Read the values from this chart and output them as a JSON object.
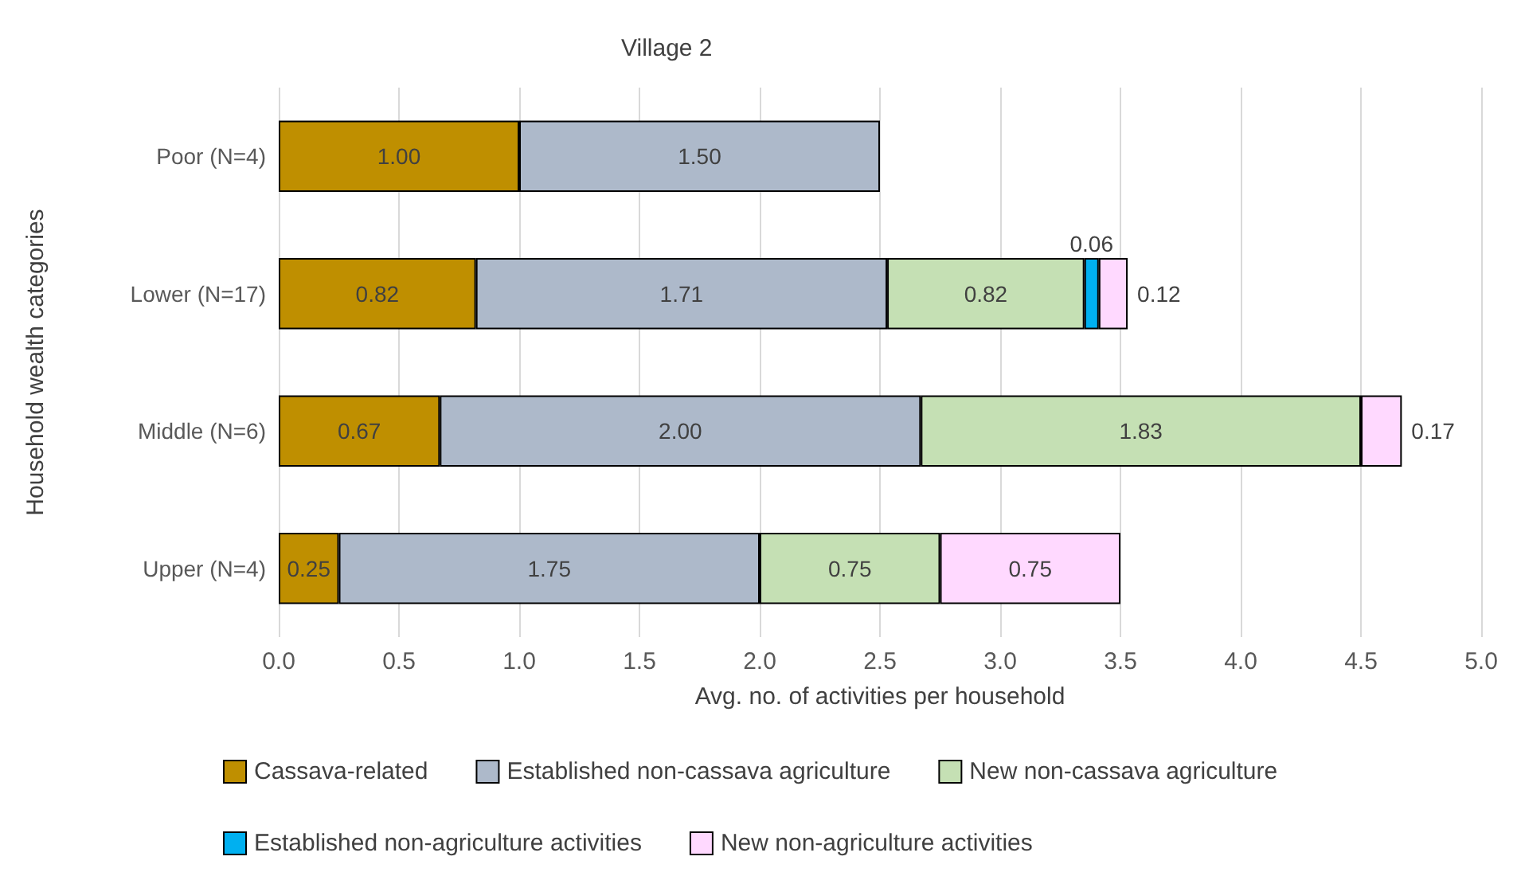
{
  "chart_data": {
    "type": "bar",
    "orientation": "horizontal",
    "stacked": true,
    "title": "Village 2",
    "xlabel": "Avg. no. of activities per household",
    "ylabel": "Household wealth categories",
    "categories": [
      "Poor (N=4)",
      "Lower (N=17)",
      "Middle (N=6)",
      "Upper (N=4)"
    ],
    "series": [
      {
        "name": "Cassava-related",
        "color": "#bf8f00",
        "values": [
          1.0,
          0.82,
          0.67,
          0.25
        ],
        "value_labels": [
          "1.00",
          "0.82",
          "0.67",
          "0.25"
        ]
      },
      {
        "name": "Established non-cassava agriculture",
        "color": "#adb9ca",
        "values": [
          1.5,
          1.71,
          2.0,
          1.75
        ],
        "value_labels": [
          "1.50",
          "1.71",
          "2.00",
          "1.75"
        ]
      },
      {
        "name": "New non-cassava agriculture",
        "color": "#c5e0b4",
        "values": [
          null,
          0.82,
          1.83,
          0.75
        ],
        "value_labels": [
          null,
          "0.82",
          "1.83",
          "0.75"
        ]
      },
      {
        "name": "Established non-agriculture activities",
        "color": "#00b0f0",
        "values": [
          null,
          0.06,
          null,
          null
        ],
        "value_labels": [
          null,
          "0.06",
          null,
          null
        ]
      },
      {
        "name": "New non-agriculture activities",
        "color": "#ffd9ff",
        "values": [
          null,
          0.12,
          0.17,
          0.75
        ],
        "value_labels": [
          null,
          "0.12",
          "0.17",
          "0.75"
        ]
      }
    ],
    "xlim": [
      0,
      5
    ],
    "xticks": [
      {
        "value": 0,
        "label": "0.0"
      },
      {
        "value": 0.5,
        "label": "0.5"
      },
      {
        "value": 1,
        "label": "1.0"
      },
      {
        "value": 1.5,
        "label": "1.5"
      },
      {
        "value": 2,
        "label": "2.0"
      },
      {
        "value": 2.5,
        "label": "2.5"
      },
      {
        "value": 3,
        "label": "3.0"
      },
      {
        "value": 3.5,
        "label": "3.5"
      },
      {
        "value": 4,
        "label": "4.0"
      },
      {
        "value": 4.5,
        "label": "4.5"
      },
      {
        "value": 5,
        "label": "5.0"
      }
    ],
    "grid": "x",
    "legend": "bottom"
  }
}
